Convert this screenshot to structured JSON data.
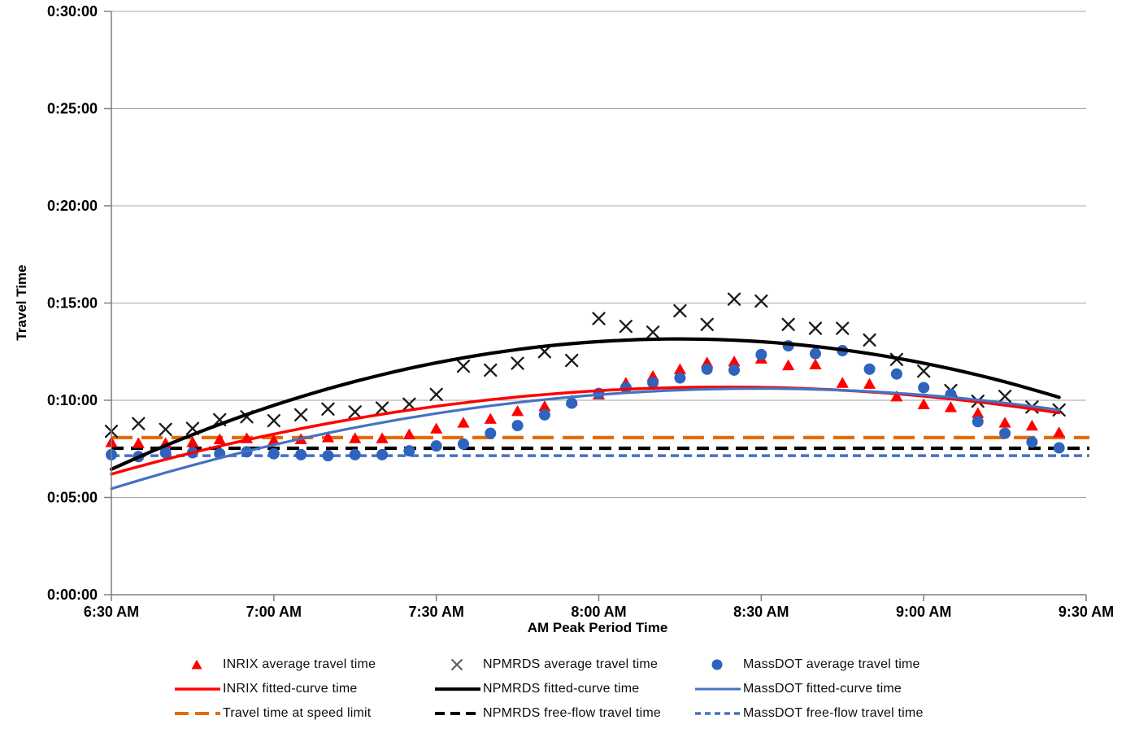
{
  "page": {
    "background": "#ffffff"
  },
  "colors": {
    "inrix_red": "#FF0000",
    "npmrds_black": "#000000",
    "npmrds_x_marker": "#1A1A1A",
    "massdot_blue_marker": "#2E63BE",
    "massdot_blue_line": "#4472C4",
    "speed_limit_orange": "#E36C09",
    "gridline_gray": "#A6A6A6",
    "axis_gray": "#7F7F7F",
    "legend_x_gray": "#595959"
  },
  "legend": {
    "items": [
      {
        "label": "INRIX average travel time",
        "swatch": "marker-triangle",
        "color": "#FF0000"
      },
      {
        "label": "NPMRDS average travel time",
        "swatch": "marker-x",
        "color": "#595959"
      },
      {
        "label": "MassDOT average travel time",
        "swatch": "marker-circle",
        "color": "#2E63BE"
      },
      {
        "label": "INRIX fitted-curve time",
        "swatch": "line",
        "color": "#FF0000",
        "width": 3.5
      },
      {
        "label": "NPMRDS fitted-curve time",
        "swatch": "line",
        "color": "#000000",
        "width": 4
      },
      {
        "label": "MassDOT fitted-curve time",
        "swatch": "line",
        "color": "#4472C4",
        "width": 3
      },
      {
        "label": "Travel time at speed limit",
        "swatch": "dash-long",
        "color": "#E36C09",
        "width": 4
      },
      {
        "label": "NPMRDS free-flow travel time",
        "swatch": "dash-med",
        "color": "#000000",
        "width": 4
      },
      {
        "label": "MassDOT free-flow travel time",
        "swatch": "dash-short",
        "color": "#4472C4",
        "width": 3.5
      }
    ]
  },
  "chart_data": {
    "type": "scatter",
    "title": "",
    "xlabel": "AM Peak Period Time",
    "ylabel": "Travel Time",
    "xlim_minutes_after_630am": [
      0,
      180
    ],
    "ylim_minutes": [
      0,
      30
    ],
    "grid": "horizontal-only",
    "legend_position": "bottom",
    "y_tick_values": [
      0,
      5,
      10,
      15,
      20,
      25,
      30
    ],
    "y_tick_labels": [
      "0:00:00",
      "0:05:00",
      "0:10:00",
      "0:15:00",
      "0:20:00",
      "0:25:00",
      "0:30:00"
    ],
    "x_tick_values": [
      0,
      30,
      60,
      90,
      120,
      150,
      180
    ],
    "x_tick_labels": [
      "6:30 AM",
      "7:00 AM",
      "7:30 AM",
      "8:00 AM",
      "8:30 AM",
      "9:00 AM",
      "9:30 AM"
    ],
    "x_minutes_after_630am": [
      0,
      5,
      10,
      15,
      20,
      25,
      30,
      35,
      40,
      45,
      50,
      55,
      60,
      65,
      70,
      75,
      80,
      85,
      90,
      95,
      100,
      105,
      110,
      115,
      120,
      125,
      130,
      135,
      140,
      145,
      150,
      155,
      160,
      165,
      170,
      175
    ],
    "x_point_times": [
      "6:30",
      "6:35",
      "6:40",
      "6:45",
      "6:50",
      "6:55",
      "7:00",
      "7:05",
      "7:10",
      "7:15",
      "7:20",
      "7:25",
      "7:30",
      "7:35",
      "7:40",
      "7:45",
      "7:50",
      "7:55",
      "8:00",
      "8:05",
      "8:10",
      "8:15",
      "8:20",
      "8:25",
      "8:30",
      "8:35",
      "8:40",
      "8:45",
      "8:50",
      "8:55",
      "9:00",
      "9:05",
      "9:10",
      "9:15",
      "9:20",
      "9:25"
    ],
    "series": [
      {
        "name": "INRIX average travel time",
        "kind": "scatter",
        "marker": "triangle",
        "color": "#FF0000",
        "values_minutes": [
          7.85,
          7.8,
          7.8,
          7.85,
          8.0,
          8.05,
          7.95,
          8.0,
          8.1,
          8.05,
          8.05,
          8.25,
          8.55,
          8.85,
          9.05,
          9.45,
          9.7,
          10.0,
          10.3,
          10.9,
          11.25,
          11.6,
          11.95,
          12.0,
          12.15,
          11.8,
          11.85,
          10.9,
          10.85,
          10.2,
          9.8,
          9.65,
          9.35,
          8.85,
          8.7,
          8.35
        ]
      },
      {
        "name": "NPMRDS average travel time",
        "kind": "scatter",
        "marker": "x",
        "color": "#1A1A1A",
        "values_minutes": [
          8.4,
          8.8,
          8.5,
          8.55,
          9.0,
          9.15,
          8.95,
          9.25,
          9.55,
          9.4,
          9.6,
          9.8,
          10.3,
          11.75,
          11.55,
          11.9,
          12.5,
          12.05,
          14.2,
          13.8,
          13.5,
          14.6,
          13.9,
          15.2,
          15.1,
          13.9,
          13.7,
          13.7,
          13.1,
          12.1,
          11.5,
          10.5,
          9.95,
          10.2,
          9.65,
          9.5
        ]
      },
      {
        "name": "MassDOT average travel time",
        "kind": "scatter",
        "marker": "circle",
        "color": "#2E63BE",
        "values_minutes": [
          7.2,
          7.1,
          7.3,
          7.3,
          7.25,
          7.35,
          7.25,
          7.2,
          7.15,
          7.2,
          7.2,
          7.4,
          7.65,
          7.75,
          8.3,
          8.7,
          9.25,
          9.85,
          10.35,
          10.65,
          10.9,
          11.15,
          11.6,
          11.55,
          12.35,
          12.8,
          12.4,
          12.55,
          11.6,
          11.35,
          10.65,
          10.3,
          8.9,
          8.3,
          7.85,
          7.55
        ]
      },
      {
        "name": "INRIX fitted-curve time",
        "kind": "curve",
        "color": "#FF0000",
        "width": 3.5,
        "anchors_t_minutes_v_minutes": [
          [
            0,
            6.2
          ],
          [
            100,
            10.62
          ],
          [
            175,
            9.35
          ]
        ]
      },
      {
        "name": "NPMRDS fitted-curve time",
        "kind": "curve",
        "color": "#000000",
        "width": 4.2,
        "anchors_t_minutes_v_minutes": [
          [
            0,
            6.45
          ],
          [
            107,
            13.15
          ],
          [
            175,
            10.15
          ]
        ]
      },
      {
        "name": "MassDOT fitted-curve time",
        "kind": "curve",
        "color": "#4472C4",
        "width": 3.2,
        "anchors_t_minutes_v_minutes": [
          [
            0,
            5.45
          ],
          [
            118,
            10.6
          ],
          [
            175,
            9.5
          ]
        ]
      },
      {
        "name": "Travel time at speed limit",
        "kind": "hline",
        "color": "#E36C09",
        "width": 4.2,
        "dash": "26,11",
        "value_minutes": 8.08
      },
      {
        "name": "NPMRDS free-flow travel time",
        "kind": "hline",
        "color": "#000000",
        "width": 4.2,
        "dash": "15,9",
        "value_minutes": 7.53
      },
      {
        "name": "MassDOT free-flow travel time",
        "kind": "hline",
        "color": "#4472C4",
        "width": 3.6,
        "dash": "10,6",
        "value_minutes": 7.15
      }
    ]
  }
}
